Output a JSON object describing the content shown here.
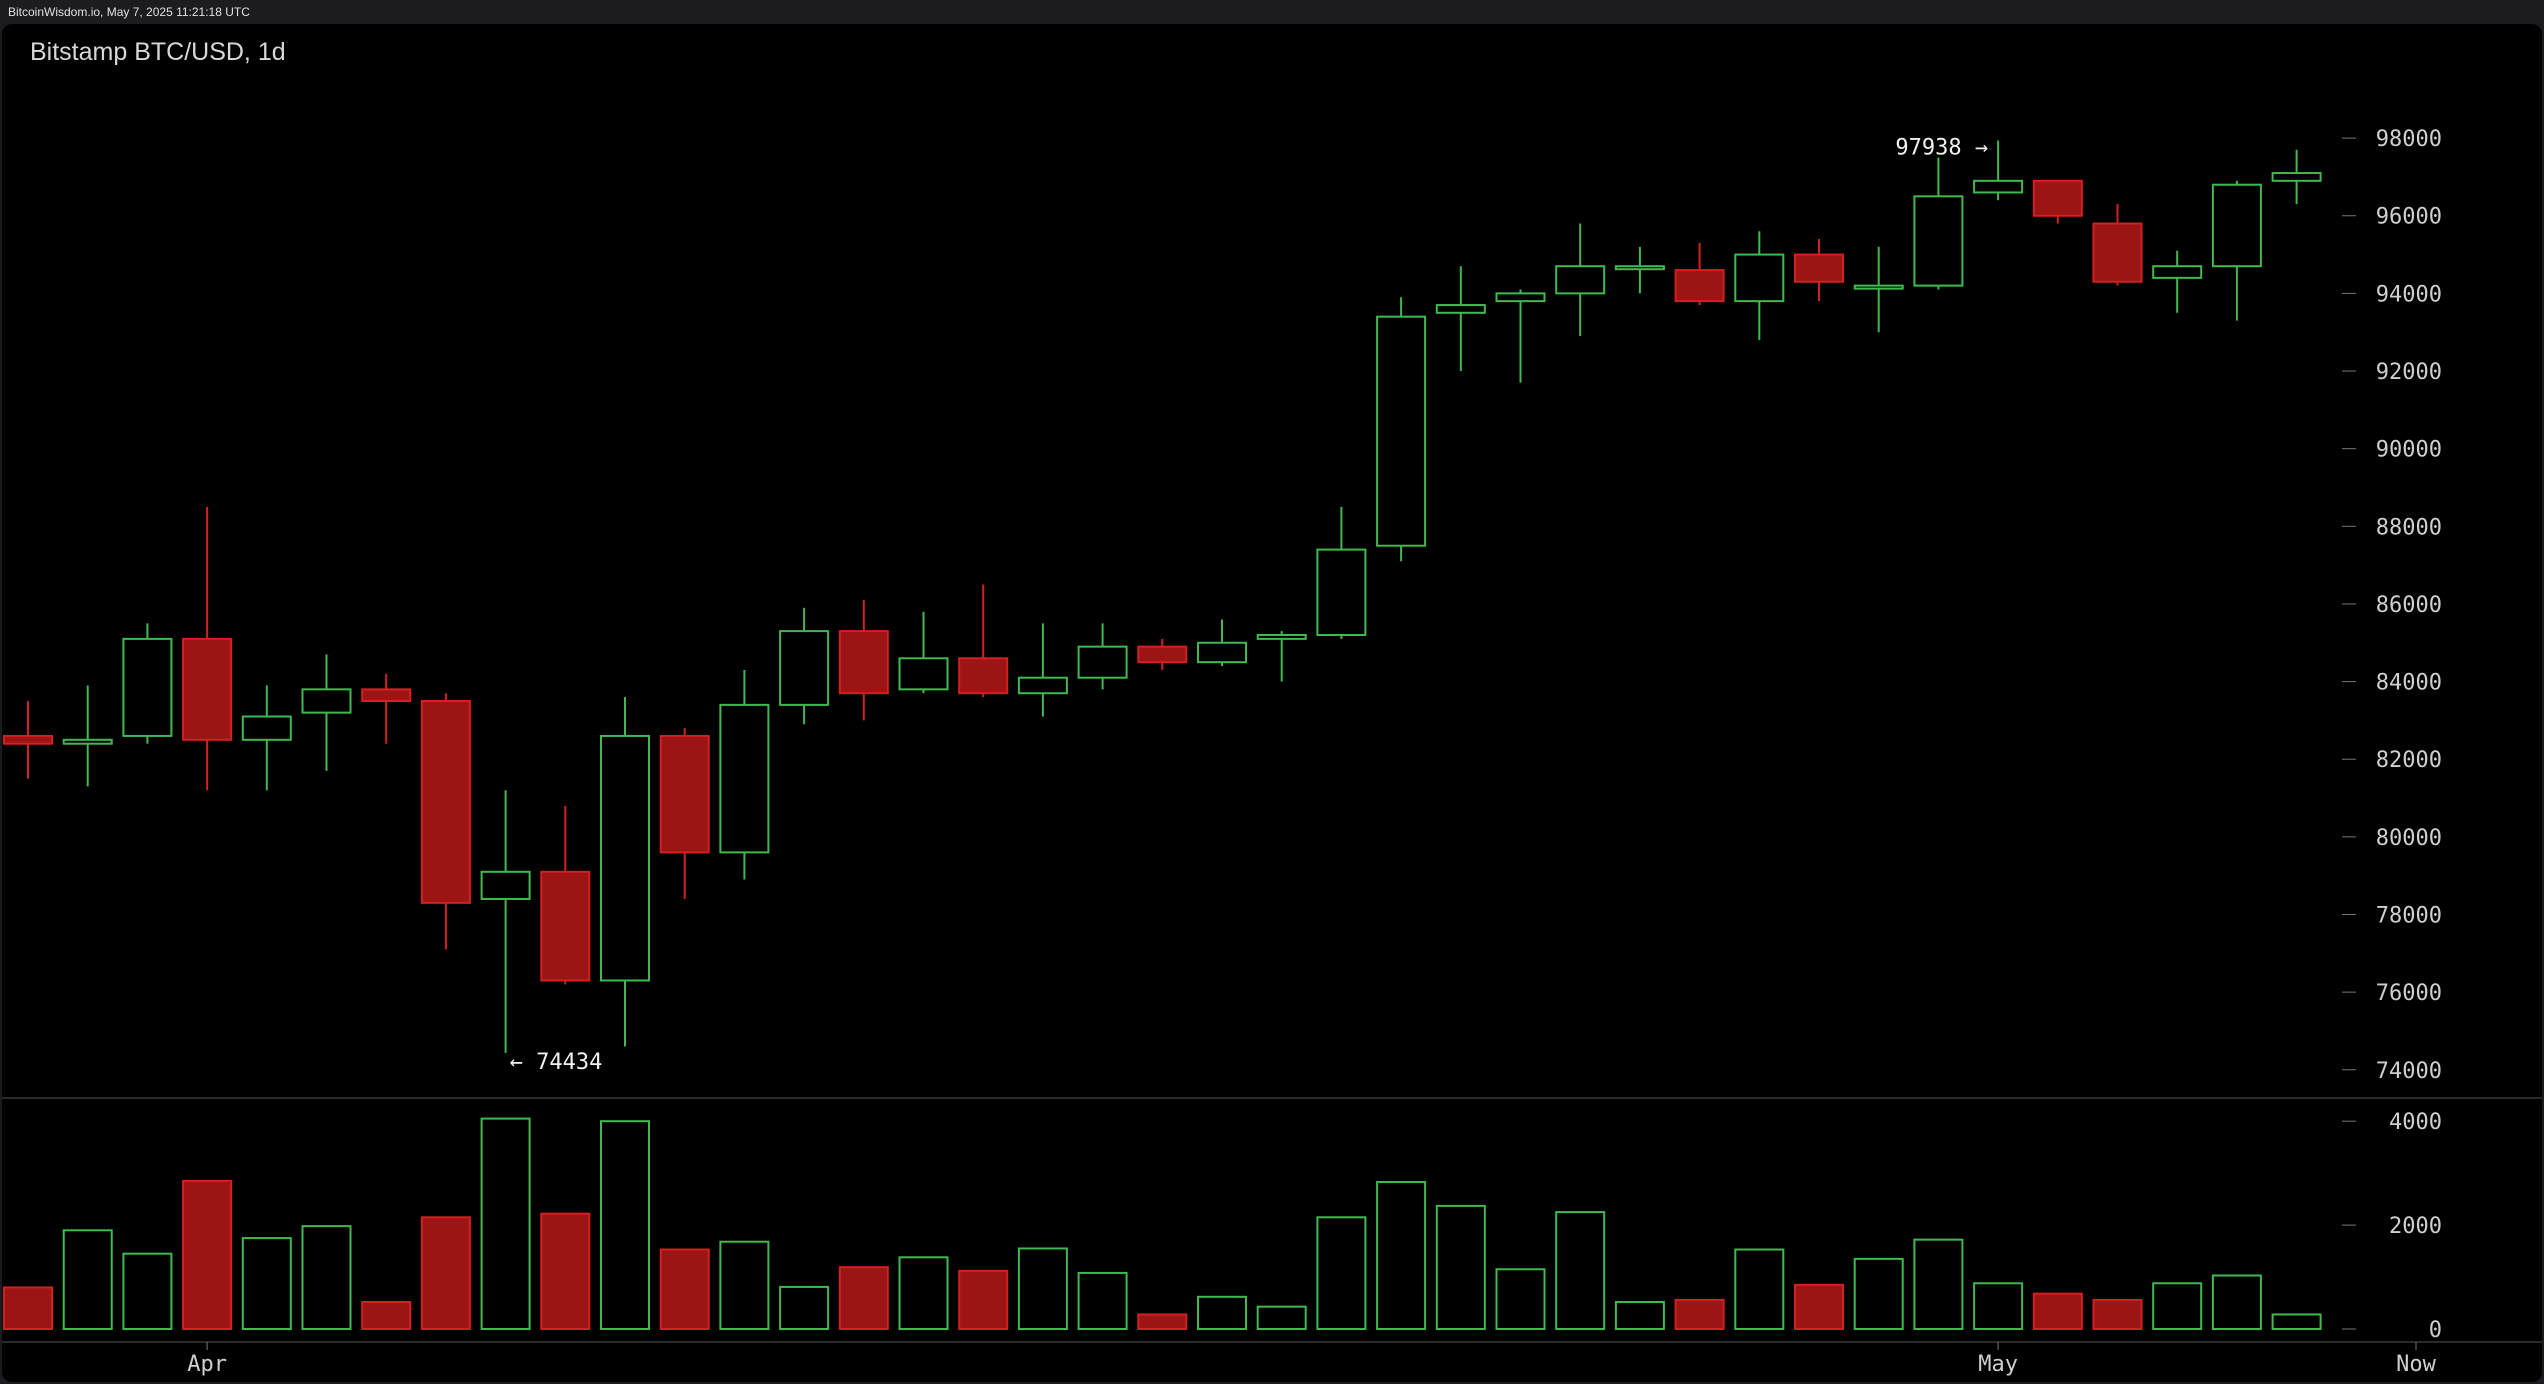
{
  "header": {
    "stamp": "BitcoinWisdom.io, May 7, 2025 11:21:18 UTC"
  },
  "colors": {
    "background": "#000000",
    "up": "#3fb950",
    "down": "#9c1414",
    "down_edge": "#d42020",
    "text": "#cfcfcf",
    "axis": "#777777"
  },
  "chart_data": {
    "type": "candlestick",
    "title": "Bitstamp BTC/USD, 1d",
    "x_labels": [
      {
        "label": "Apr",
        "index": 3
      },
      {
        "label": "May",
        "index": 33
      },
      {
        "label": "Now",
        "index": 40
      }
    ],
    "price_axis": {
      "ylim": [
        72500,
        99600
      ],
      "ticks": [
        74000,
        76000,
        78000,
        80000,
        82000,
        84000,
        86000,
        88000,
        90000,
        92000,
        94000,
        96000,
        98000
      ]
    },
    "volume_axis": {
      "ylim": [
        0,
        4100
      ],
      "ticks": [
        0,
        2000,
        4000
      ]
    },
    "annotations": [
      {
        "text": "97938 →",
        "index": 33,
        "value": 97938,
        "side": "left"
      },
      {
        "text": "← 74434",
        "index": 8,
        "value": 74434,
        "side": "right"
      }
    ],
    "candles": [
      {
        "o": 82600,
        "h": 83500,
        "l": 81500,
        "c": 82400,
        "v": 800
      },
      {
        "o": 82400,
        "h": 83900,
        "l": 81300,
        "c": 82500,
        "v": 1900
      },
      {
        "o": 82600,
        "h": 85500,
        "l": 82400,
        "c": 85100,
        "v": 1450
      },
      {
        "o": 85100,
        "h": 88500,
        "l": 81200,
        "c": 82500,
        "v": 2850
      },
      {
        "o": 82500,
        "h": 83900,
        "l": 81200,
        "c": 83100,
        "v": 1750
      },
      {
        "o": 83200,
        "h": 84700,
        "l": 81700,
        "c": 83800,
        "v": 1980
      },
      {
        "o": 83800,
        "h": 84200,
        "l": 82400,
        "c": 83500,
        "v": 520
      },
      {
        "o": 83500,
        "h": 83700,
        "l": 77100,
        "c": 78300,
        "v": 2150
      },
      {
        "o": 78400,
        "h": 81200,
        "l": 74434,
        "c": 79100,
        "v": 4050
      },
      {
        "o": 79100,
        "h": 80800,
        "l": 76200,
        "c": 76300,
        "v": 2220
      },
      {
        "o": 76300,
        "h": 83600,
        "l": 74600,
        "c": 82600,
        "v": 4000
      },
      {
        "o": 82600,
        "h": 82800,
        "l": 78400,
        "c": 79600,
        "v": 1530
      },
      {
        "o": 79600,
        "h": 84300,
        "l": 78900,
        "c": 83400,
        "v": 1680
      },
      {
        "o": 83400,
        "h": 85900,
        "l": 82900,
        "c": 85300,
        "v": 810
      },
      {
        "o": 85300,
        "h": 86100,
        "l": 83000,
        "c": 83700,
        "v": 1190
      },
      {
        "o": 83800,
        "h": 85800,
        "l": 83700,
        "c": 84600,
        "v": 1380
      },
      {
        "o": 84600,
        "h": 86500,
        "l": 83600,
        "c": 83700,
        "v": 1120
      },
      {
        "o": 83700,
        "h": 85500,
        "l": 83100,
        "c": 84100,
        "v": 1550
      },
      {
        "o": 84100,
        "h": 85500,
        "l": 83800,
        "c": 84900,
        "v": 1080
      },
      {
        "o": 84900,
        "h": 85100,
        "l": 84300,
        "c": 84500,
        "v": 280
      },
      {
        "o": 84500,
        "h": 85600,
        "l": 84400,
        "c": 85000,
        "v": 620
      },
      {
        "o": 85100,
        "h": 85300,
        "l": 84000,
        "c": 85200,
        "v": 430
      },
      {
        "o": 85200,
        "h": 88500,
        "l": 85100,
        "c": 87400,
        "v": 2150
      },
      {
        "o": 87500,
        "h": 93900,
        "l": 87100,
        "c": 93400,
        "v": 2830
      },
      {
        "o": 93500,
        "h": 94700,
        "l": 92000,
        "c": 93700,
        "v": 2370
      },
      {
        "o": 93800,
        "h": 94100,
        "l": 91700,
        "c": 94000,
        "v": 1150
      },
      {
        "o": 94000,
        "h": 95800,
        "l": 92900,
        "c": 94700,
        "v": 2250
      },
      {
        "o": 94700,
        "h": 95200,
        "l": 94000,
        "c": 94700,
        "v": 520
      },
      {
        "o": 94600,
        "h": 95300,
        "l": 93700,
        "c": 93800,
        "v": 560
      },
      {
        "o": 93800,
        "h": 95600,
        "l": 92800,
        "c": 95000,
        "v": 1530
      },
      {
        "o": 95000,
        "h": 95400,
        "l": 93800,
        "c": 94300,
        "v": 850
      },
      {
        "o": 94200,
        "h": 95200,
        "l": 93000,
        "c": 94200,
        "v": 1350
      },
      {
        "o": 94200,
        "h": 97500,
        "l": 94100,
        "c": 96500,
        "v": 1720
      },
      {
        "o": 96600,
        "h": 97938,
        "l": 96400,
        "c": 96900,
        "v": 880
      },
      {
        "o": 96900,
        "h": 96900,
        "l": 95800,
        "c": 96000,
        "v": 680
      },
      {
        "o": 95800,
        "h": 96300,
        "l": 94200,
        "c": 94300,
        "v": 560
      },
      {
        "o": 94400,
        "h": 95100,
        "l": 93500,
        "c": 94700,
        "v": 880
      },
      {
        "o": 94700,
        "h": 96900,
        "l": 93300,
        "c": 96800,
        "v": 1030
      },
      {
        "o": 96900,
        "h": 97700,
        "l": 96300,
        "c": 97100,
        "v": 280
      }
    ]
  }
}
